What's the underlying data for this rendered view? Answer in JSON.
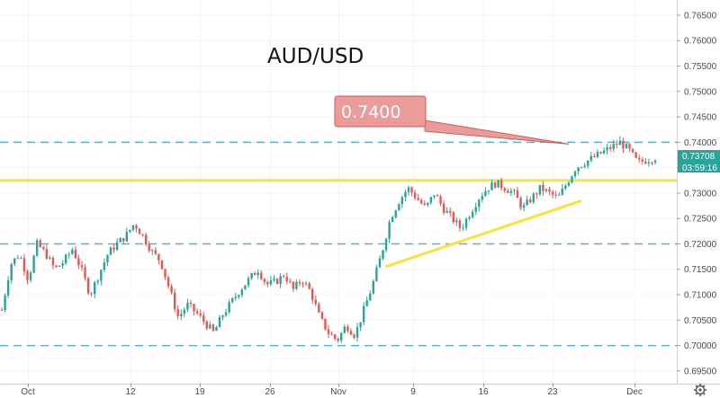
{
  "chart_data": {
    "type": "candlestick",
    "title": "AUD/USD",
    "ylim": [
      0.6925,
      0.768
    ],
    "y_ticks": [
      "0.76500",
      "0.76000",
      "0.75500",
      "0.75000",
      "0.74500",
      "0.74000",
      "0.73500",
      "0.73000",
      "0.72500",
      "0.72000",
      "0.71500",
      "0.71000",
      "0.70500",
      "0.70000",
      "0.69500"
    ],
    "x_labels": [
      "Oct",
      "12",
      "19",
      "26",
      "Nov",
      "9",
      "16",
      "23",
      "Dec"
    ],
    "horizontal_levels": [
      0.74,
      0.7325,
      0.72,
      0.7
    ],
    "callout": {
      "label": "0.7400",
      "value": 0.74
    },
    "trendline": {
      "from": {
        "x": "Nov 6",
        "y": 0.7155
      },
      "to": {
        "x": "Nov 24",
        "y": 0.7285
      }
    },
    "last_price": {
      "label": "0.73708",
      "value": 0.73708
    },
    "countdown": {
      "label": "03:59:16"
    },
    "series_path": [
      [
        0.707,
        0.716,
        0.718,
        0.713,
        0.72,
        0.718,
        0.715,
        0.7165,
        0.719,
        0.715,
        0.71,
        0.714,
        0.718,
        0.72,
        0.7215,
        0.724,
        0.7215,
        0.7185,
        0.7165,
        0.711,
        0.7055,
        0.708,
        0.7065,
        0.7045,
        0.7025,
        0.706,
        0.7085,
        0.711,
        0.713,
        0.715,
        0.712,
        0.7125,
        0.714,
        0.711,
        0.713,
        0.7105,
        0.7055,
        0.7025,
        0.701,
        0.704,
        0.702,
        0.707,
        0.712,
        0.718,
        0.725,
        0.7285,
        0.731,
        0.729,
        0.727,
        0.73,
        0.727,
        0.725,
        0.723,
        0.726,
        0.729,
        0.731,
        0.732,
        0.731,
        0.73,
        0.727,
        0.729,
        0.731,
        0.73,
        0.729,
        0.732,
        0.735,
        0.736,
        0.737,
        0.738,
        0.739,
        0.74,
        0.7385,
        0.736,
        0.7365,
        0.737
      ]
    ]
  }
}
